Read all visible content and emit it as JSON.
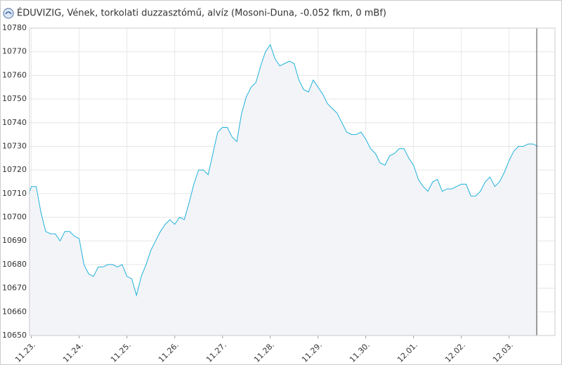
{
  "chart_data": {
    "type": "area",
    "title": "ÉDUVIZIG, Vének, torkolati duzzasztómű, alvíz (Mosoni-Duna, -0.052 fkm, 0 mBf)",
    "x": [
      -0.05,
      0,
      0.1,
      0.2,
      0.3,
      0.4,
      0.5,
      0.6,
      0.7,
      0.8,
      0.9,
      1,
      1.1,
      1.2,
      1.3,
      1.4,
      1.5,
      1.6,
      1.7,
      1.8,
      1.9,
      2,
      2.1,
      2.2,
      2.3,
      2.4,
      2.5,
      2.6,
      2.7,
      2.8,
      2.9,
      3,
      3.1,
      3.2,
      3.3,
      3.4,
      3.5,
      3.6,
      3.7,
      3.8,
      3.9,
      4,
      4.1,
      4.2,
      4.3,
      4.4,
      4.5,
      4.6,
      4.7,
      4.8,
      4.9,
      5,
      5.1,
      5.2,
      5.3,
      5.4,
      5.5,
      5.6,
      5.7,
      5.8,
      5.9,
      6,
      6.1,
      6.2,
      6.3,
      6.4,
      6.5,
      6.6,
      6.7,
      6.8,
      6.9,
      7,
      7.1,
      7.2,
      7.3,
      7.4,
      7.5,
      7.6,
      7.7,
      7.8,
      7.9,
      8,
      8.1,
      8.2,
      8.3,
      8.4,
      8.5,
      8.6,
      8.7,
      8.8,
      8.9,
      9,
      9.1,
      9.2,
      9.3,
      9.4,
      9.5,
      9.6,
      9.7,
      9.8,
      9.9,
      10,
      10.1,
      10.2,
      10.3,
      10.4,
      10.5,
      10.6
    ],
    "series": [
      {
        "color": "#1fb2d9",
        "values": [
          10710,
          10713,
          10713,
          10702,
          10694,
          10693,
          10693,
          10690,
          10694,
          10694,
          10692,
          10691,
          10680,
          10676,
          10675,
          10679,
          10679,
          10680,
          10680,
          10679,
          10680,
          10675,
          10674,
          10667,
          10675,
          10680,
          10686,
          10690,
          10694,
          10697,
          10699,
          10697,
          10700,
          10699,
          10706,
          10714,
          10720,
          10720,
          10718,
          10727,
          10736,
          10738,
          10738,
          10734,
          10732,
          10744,
          10751,
          10755,
          10757,
          10764,
          10770,
          10773,
          10767,
          10764,
          10765,
          10766,
          10765,
          10758,
          10754,
          10753,
          10758,
          10755,
          10752,
          10748,
          10746,
          10744,
          10740,
          10736,
          10735,
          10735,
          10736,
          10733,
          10729,
          10727,
          10723,
          10722,
          10726,
          10727,
          10729,
          10729,
          10725,
          10722,
          10716,
          10713,
          10711,
          10715,
          10716,
          10711,
          10712,
          10712,
          10713,
          10714,
          10714,
          10709,
          10709,
          10711,
          10715,
          10717,
          10713,
          10715,
          10719,
          10724,
          10728,
          10730,
          10730,
          10731,
          10731,
          10730
        ]
      }
    ],
    "xlim": [
      -0.04,
      10.96
    ],
    "xticks": [
      {
        "value": 0,
        "label": "11.23."
      },
      {
        "value": 1,
        "label": "11.24."
      },
      {
        "value": 2,
        "label": "11.25."
      },
      {
        "value": 3,
        "label": "11.26."
      },
      {
        "value": 4,
        "label": "11.27."
      },
      {
        "value": 5,
        "label": "11.28."
      },
      {
        "value": 6,
        "label": "11.29."
      },
      {
        "value": 7,
        "label": "11.30."
      },
      {
        "value": 8,
        "label": "12.01."
      },
      {
        "value": 9,
        "label": "12.02."
      },
      {
        "value": 10,
        "label": "12.03."
      }
    ],
    "ylim": [
      10650,
      10780
    ],
    "yticks": [
      10650,
      10660,
      10670,
      10680,
      10690,
      10700,
      10710,
      10720,
      10730,
      10740,
      10750,
      10760,
      10770,
      10780
    ],
    "grid": true
  }
}
